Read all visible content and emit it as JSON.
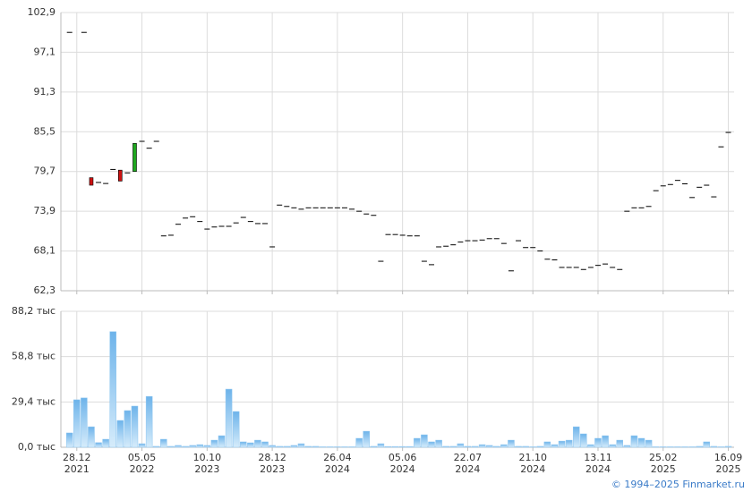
{
  "chart_data": [
    {
      "type": "candlestick",
      "x": [
        0,
        1,
        2,
        3,
        4,
        5,
        6,
        7,
        8,
        9,
        10,
        11,
        12,
        13,
        14,
        15,
        16,
        17,
        18,
        19,
        20,
        21,
        22,
        23,
        24,
        25,
        26,
        27,
        28,
        29,
        30,
        31,
        32,
        33,
        34,
        35,
        36,
        37,
        38,
        39,
        40,
        41,
        42,
        43,
        44,
        45,
        46,
        47,
        48,
        49,
        50,
        51,
        52,
        53,
        54,
        55,
        56,
        57,
        58,
        59,
        60,
        61,
        62,
        63,
        64,
        65,
        66,
        67,
        68,
        69,
        70,
        71,
        72,
        73,
        74,
        75,
        76,
        77,
        78,
        79,
        80,
        81,
        82,
        83,
        84,
        85,
        86,
        87,
        88,
        89,
        90,
        91
      ],
      "open": [
        100.0,
        null,
        100.0,
        78.8,
        78.1,
        77.95,
        80.0,
        79.9,
        79.5,
        79.7,
        84.1,
        83.1,
        84.1,
        70.3,
        70.4,
        72.0,
        72.9,
        73.1,
        72.4,
        71.3,
        71.6,
        71.7,
        71.7,
        72.2,
        73.0,
        72.4,
        72.1,
        72.1,
        68.7,
        74.8,
        74.6,
        74.4,
        74.2,
        74.4,
        74.4,
        74.4,
        74.4,
        74.4,
        74.4,
        74.2,
        73.9,
        73.5,
        73.3,
        66.6,
        70.5,
        70.5,
        70.4,
        70.3,
        70.3,
        66.6,
        66.1,
        68.7,
        68.8,
        69.0,
        69.4,
        69.6,
        69.6,
        69.7,
        69.9,
        69.9,
        69.2,
        65.2,
        69.6,
        68.6,
        68.6,
        68.1,
        66.9,
        66.8,
        65.7,
        65.7,
        65.7,
        65.4,
        65.7,
        66.0,
        66.2,
        65.7,
        65.4,
        73.9,
        74.4,
        74.4,
        74.6,
        76.9,
        77.6,
        77.8,
        78.4,
        77.9,
        75.9,
        77.4,
        77.7,
        76.0,
        83.3,
        85.4
      ],
      "close": [
        100.0,
        null,
        100.0,
        77.7,
        78.1,
        77.95,
        80.0,
        78.3,
        79.5,
        83.8,
        84.1,
        83.1,
        84.1,
        70.3,
        70.4,
        72.0,
        72.9,
        73.1,
        72.4,
        71.3,
        71.6,
        71.7,
        71.7,
        72.2,
        73.0,
        72.4,
        72.1,
        72.1,
        68.7,
        74.8,
        74.6,
        74.4,
        74.2,
        74.4,
        74.4,
        74.4,
        74.4,
        74.4,
        74.4,
        74.2,
        73.9,
        73.5,
        73.3,
        66.6,
        70.5,
        70.5,
        70.4,
        70.3,
        70.3,
        66.6,
        66.1,
        68.7,
        68.8,
        69.0,
        69.4,
        69.6,
        69.6,
        69.7,
        69.9,
        69.9,
        69.2,
        65.2,
        69.6,
        68.6,
        68.6,
        68.1,
        66.9,
        66.8,
        65.7,
        65.7,
        65.7,
        65.4,
        65.7,
        66.0,
        66.2,
        65.7,
        65.4,
        73.9,
        74.4,
        74.4,
        74.6,
        76.9,
        77.6,
        77.8,
        78.4,
        77.9,
        75.9,
        77.4,
        77.7,
        76.0,
        83.3,
        85.4
      ],
      "up_color": "#1fa81f",
      "down_color": "#cc1111",
      "flat_color": "#000000",
      "xlim": [
        -1.2,
        91.8
      ],
      "ylim": [
        62.3,
        102.9
      ],
      "yticks": [
        {
          "value": 62.3,
          "label": "62,3"
        },
        {
          "value": 68.1,
          "label": "68,1"
        },
        {
          "value": 73.9,
          "label": "73,9"
        },
        {
          "value": 79.7,
          "label": "79,7"
        },
        {
          "value": 85.5,
          "label": "85,5"
        },
        {
          "value": 91.3,
          "label": "91,3"
        },
        {
          "value": 97.1,
          "label": "97,1"
        },
        {
          "value": 102.9,
          "label": "102,9"
        }
      ],
      "grid": true
    },
    {
      "type": "bar",
      "x": [
        0,
        1,
        2,
        3,
        4,
        5,
        6,
        7,
        8,
        9,
        10,
        11,
        12,
        13,
        14,
        15,
        16,
        17,
        18,
        19,
        20,
        21,
        22,
        23,
        24,
        25,
        26,
        27,
        28,
        29,
        30,
        31,
        32,
        33,
        34,
        35,
        36,
        37,
        38,
        39,
        40,
        41,
        42,
        43,
        44,
        45,
        46,
        47,
        48,
        49,
        50,
        51,
        52,
        53,
        54,
        55,
        56,
        57,
        58,
        59,
        60,
        61,
        62,
        63,
        64,
        65,
        66,
        67,
        68,
        69,
        70,
        71,
        72,
        73,
        74,
        75,
        76,
        77,
        78,
        79,
        80,
        81,
        82,
        83,
        84,
        85,
        86,
        87,
        88,
        89,
        90,
        91
      ],
      "values": [
        9.3,
        30.8,
        32.0,
        13.3,
        3.0,
        5.2,
        75.0,
        17.4,
        23.8,
        26.7,
        2.3,
        33.0,
        0.6,
        5.2,
        0.6,
        1.2,
        0.6,
        1.2,
        1.7,
        1.2,
        4.6,
        7.5,
        37.7,
        23.2,
        3.5,
        2.9,
        4.6,
        3.5,
        1.2,
        0.6,
        0.6,
        1.2,
        2.3,
        0.6,
        0.6,
        0.3,
        0.3,
        0.3,
        0.3,
        0.3,
        5.8,
        10.4,
        0.6,
        2.3,
        0.5,
        0.5,
        0.5,
        0.5,
        5.8,
        8.1,
        3.5,
        4.6,
        0.6,
        0.6,
        2.3,
        0.6,
        0.6,
        1.7,
        1.2,
        0.6,
        1.7,
        4.6,
        0.6,
        0.6,
        0.3,
        0.6,
        3.5,
        1.7,
        4.0,
        4.6,
        13.3,
        8.7,
        1.7,
        5.8,
        7.5,
        1.7,
        4.6,
        1.2,
        7.5,
        5.8,
        4.6,
        0.3,
        0.3,
        0.3,
        0.3,
        0.3,
        0.3,
        0.6,
        3.5,
        0.6,
        0.3,
        0.6
      ],
      "color": "#8ec6f0",
      "xlim": [
        -1.2,
        91.8
      ],
      "xticks": [
        {
          "value": 1,
          "label": "28.12"
        },
        {
          "value": 10,
          "label": "05.05"
        },
        {
          "value": 19,
          "label": "10.10"
        },
        {
          "value": 28,
          "label": "28.12"
        },
        {
          "value": 37,
          "label": "26.04"
        },
        {
          "value": 46,
          "label": "05.06"
        },
        {
          "value": 55,
          "label": "22.07"
        },
        {
          "value": 64,
          "label": "21.10"
        },
        {
          "value": 73,
          "label": "13.11"
        },
        {
          "value": 82,
          "label": "25.02"
        },
        {
          "value": 91,
          "label": "16.09"
        }
      ],
      "xtick_years": [
        "2021",
        "2022",
        "2023",
        "2023",
        "2024",
        "2024",
        "2024",
        "2024",
        "2024",
        "2025",
        "2025"
      ],
      "ylim": [
        0,
        88.2
      ],
      "yticks": [
        {
          "value": 0,
          "label": "0,0 тыс"
        },
        {
          "value": 29.4,
          "label": "29,4 тыс"
        },
        {
          "value": 58.8,
          "label": "58,8 тыс"
        },
        {
          "value": 88.2,
          "label": "88,2 тыс"
        }
      ],
      "grid": true
    }
  ],
  "footer": "© 1994–2025 Finmarket.ru"
}
